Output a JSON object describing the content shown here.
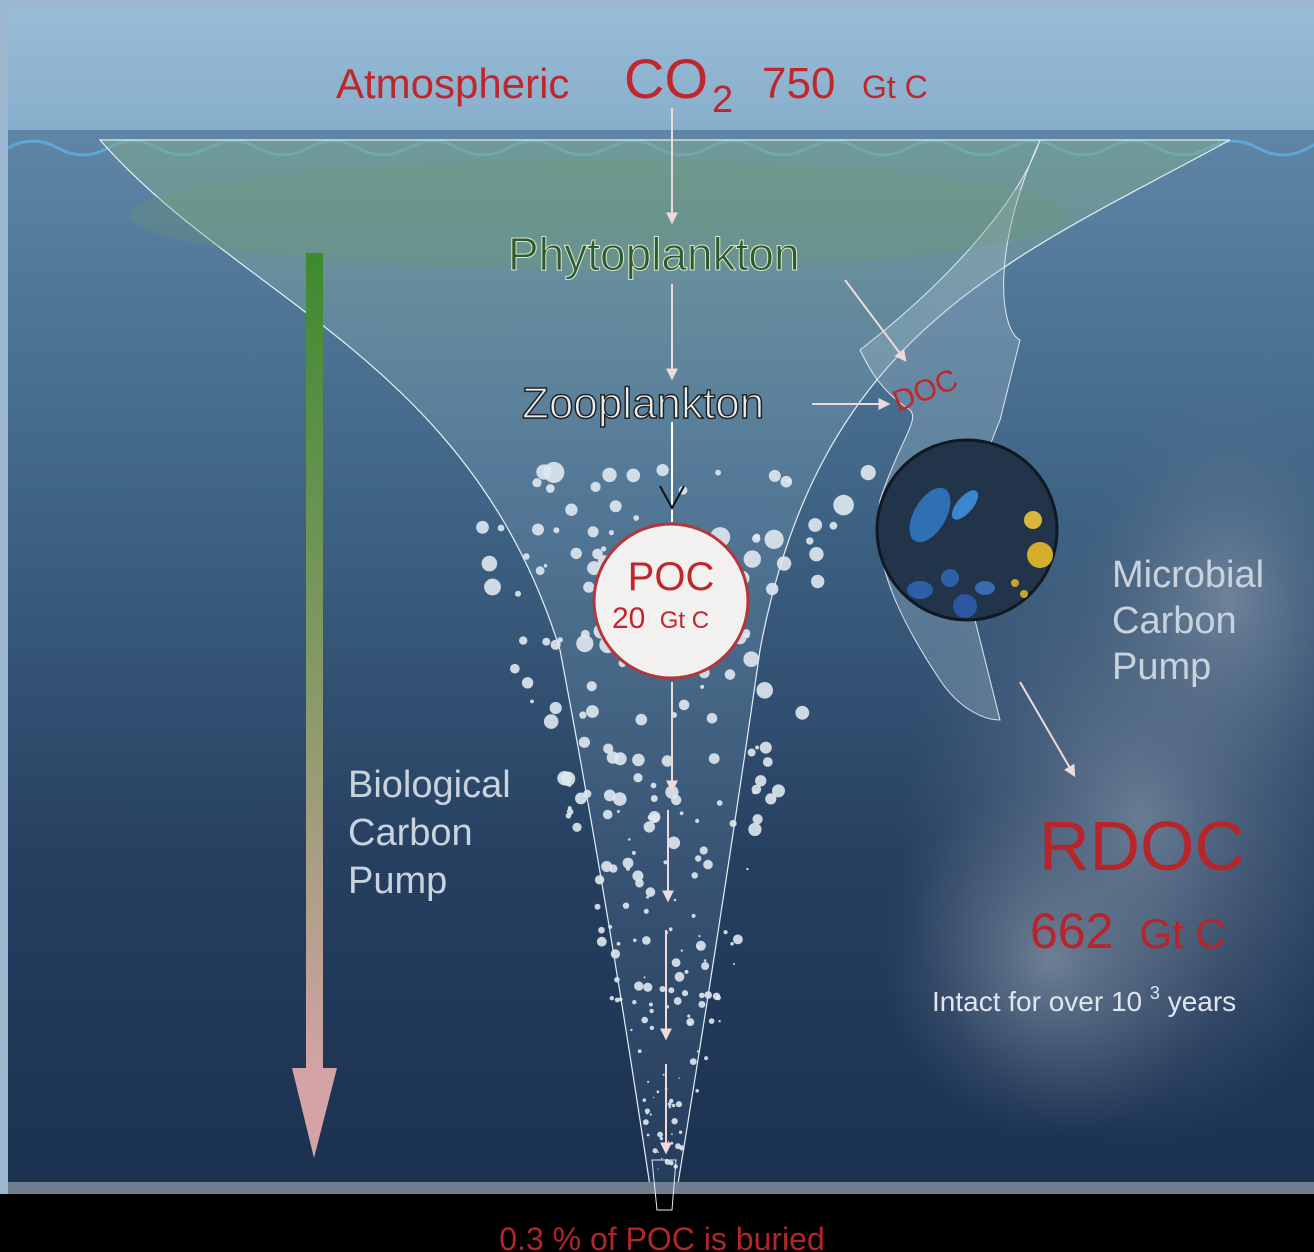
{
  "colors": {
    "sky": "#8cb2cf",
    "ocean_top": "#5f86a6",
    "ocean_deep": "#1a3352",
    "accent_red": "#c0272d",
    "phyto_green": "#2f5a2e",
    "pale_text": "#c9d3de",
    "arrow_pale": "#e9d9da",
    "sediment": "#000000"
  },
  "atmosphere": {
    "label": "Atmospheric",
    "co": "CO",
    "sub": "2",
    "value": "750",
    "unit": "Gt C"
  },
  "nodes": {
    "phytoplankton": "Phytoplankton",
    "zooplankton": "Zooplankton",
    "doc": "DOC",
    "poc_label": "POC",
    "poc_value": "20",
    "poc_unit": "Gt C"
  },
  "biological_pump": {
    "line1": "Biological",
    "line2": "Carbon",
    "line3": "Pump"
  },
  "microbial_pump": {
    "line1": "Microbial",
    "line2": "Carbon",
    "line3": "Pump"
  },
  "rdoc": {
    "label": "RDOC",
    "value": "662",
    "unit": "Gt C",
    "note_prefix": "Intact for over 10",
    "note_sup": "3",
    "note_suffix": " years"
  },
  "burial": {
    "text": "0.3 % of POC is buried"
  }
}
